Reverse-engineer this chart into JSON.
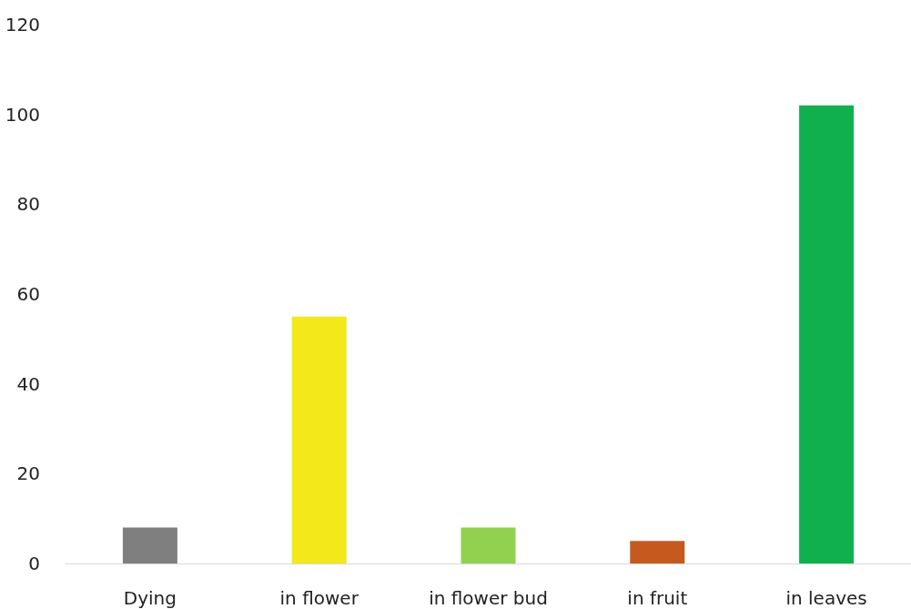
{
  "chart_data": {
    "type": "bar",
    "categories": [
      "Dying",
      "in flower",
      "in flower bud",
      "in fruit",
      "in leaves"
    ],
    "values": [
      8,
      55,
      8,
      5,
      102
    ],
    "colors": [
      "#7f7f7f",
      "#f2e81a",
      "#92d050",
      "#c55a1f",
      "#11b04f"
    ],
    "ylim": [
      0,
      120
    ],
    "yticks": [
      0,
      20,
      40,
      60,
      80,
      100,
      120
    ],
    "grid": false
  }
}
